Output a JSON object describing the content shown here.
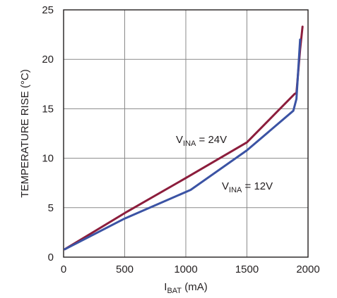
{
  "chart_data": {
    "type": "line",
    "title": "",
    "xlabel": {
      "main": "I",
      "sub": "BAT",
      "rest": " (mA)"
    },
    "ylabel": "TEMPERATURE RISE (°C)",
    "xlim": [
      0,
      2000
    ],
    "ylim": [
      0,
      25
    ],
    "xticks": [
      0,
      500,
      1000,
      1500,
      2000
    ],
    "yticks": [
      0,
      5,
      10,
      15,
      20,
      25
    ],
    "grid": true,
    "series": [
      {
        "name": "24V",
        "label": {
          "main": "V",
          "sub": "INA",
          "rest": " = 24V"
        },
        "color": "#8c1d3c",
        "x": [
          10,
          520,
          1000,
          1500,
          1890,
          1905,
          1935,
          1955
        ],
        "y": [
          0.8,
          4.6,
          8.0,
          11.6,
          16.5,
          16.6,
          21.0,
          23.3
        ]
      },
      {
        "name": "12V",
        "label": {
          "main": "V",
          "sub": "INA",
          "rest": " = 12V"
        },
        "color": "#3b53a4",
        "x": [
          10,
          500,
          1040,
          1500,
          1880,
          1905,
          1935
        ],
        "y": [
          0.8,
          3.9,
          6.8,
          10.8,
          14.8,
          16.0,
          22.0
        ]
      }
    ]
  }
}
